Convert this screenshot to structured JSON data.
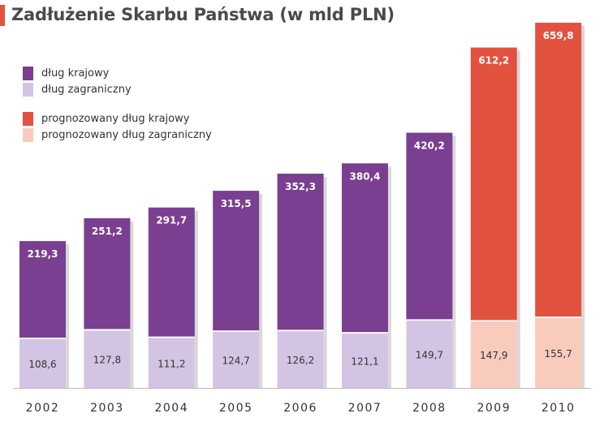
{
  "title": "Zadłużenie Skarbu Państwa (w mld PLN)",
  "colors": {
    "domestic": "#7a3f90",
    "foreign": "#d4c4e3",
    "forecast_domestic": "#e2523f",
    "forecast_foreign": "#f8cbbd",
    "title_accent": "#e2523f"
  },
  "legend": [
    {
      "label": "dług krajowy",
      "color": "#7a3f90"
    },
    {
      "label": "dług zagraniczny",
      "color": "#d4c4e3"
    },
    {
      "label": "prognozowany dług krajowy",
      "color": "#e2523f"
    },
    {
      "label": "prognozowany dług zagraniczny",
      "color": "#f8cbbd"
    }
  ],
  "chart_data": {
    "type": "bar",
    "stacked": true,
    "title": "Zadłużenie Skarbu Państwa (w mld PLN)",
    "categories": [
      "2002",
      "2003",
      "2004",
      "2005",
      "2006",
      "2007",
      "2008",
      "2009",
      "2010"
    ],
    "forecast_categories": [
      "2009",
      "2010"
    ],
    "series": [
      {
        "name": "dług zagraniczny",
        "values": [
          108.6,
          127.8,
          111.2,
          124.7,
          126.2,
          121.1,
          149.7,
          147.9,
          155.7
        ]
      },
      {
        "name": "dług krajowy",
        "values": [
          219.3,
          251.2,
          291.7,
          315.5,
          352.3,
          380.4,
          420.2,
          612.2,
          659.8
        ]
      }
    ],
    "labels_foreign": [
      "108,6",
      "127,8",
      "111,2",
      "124,7",
      "126,2",
      "121,1",
      "149,7",
      "147,9",
      "155,7"
    ],
    "labels_domestic": [
      "219,3",
      "251,2",
      "291,7",
      "315,5",
      "352,3",
      "380,4",
      "420,2",
      "612,2",
      "659,8"
    ],
    "xlabel": "",
    "ylabel": "",
    "ylim": [
      0,
      815.5
    ],
    "grid": false,
    "legend_position": "top-left"
  }
}
